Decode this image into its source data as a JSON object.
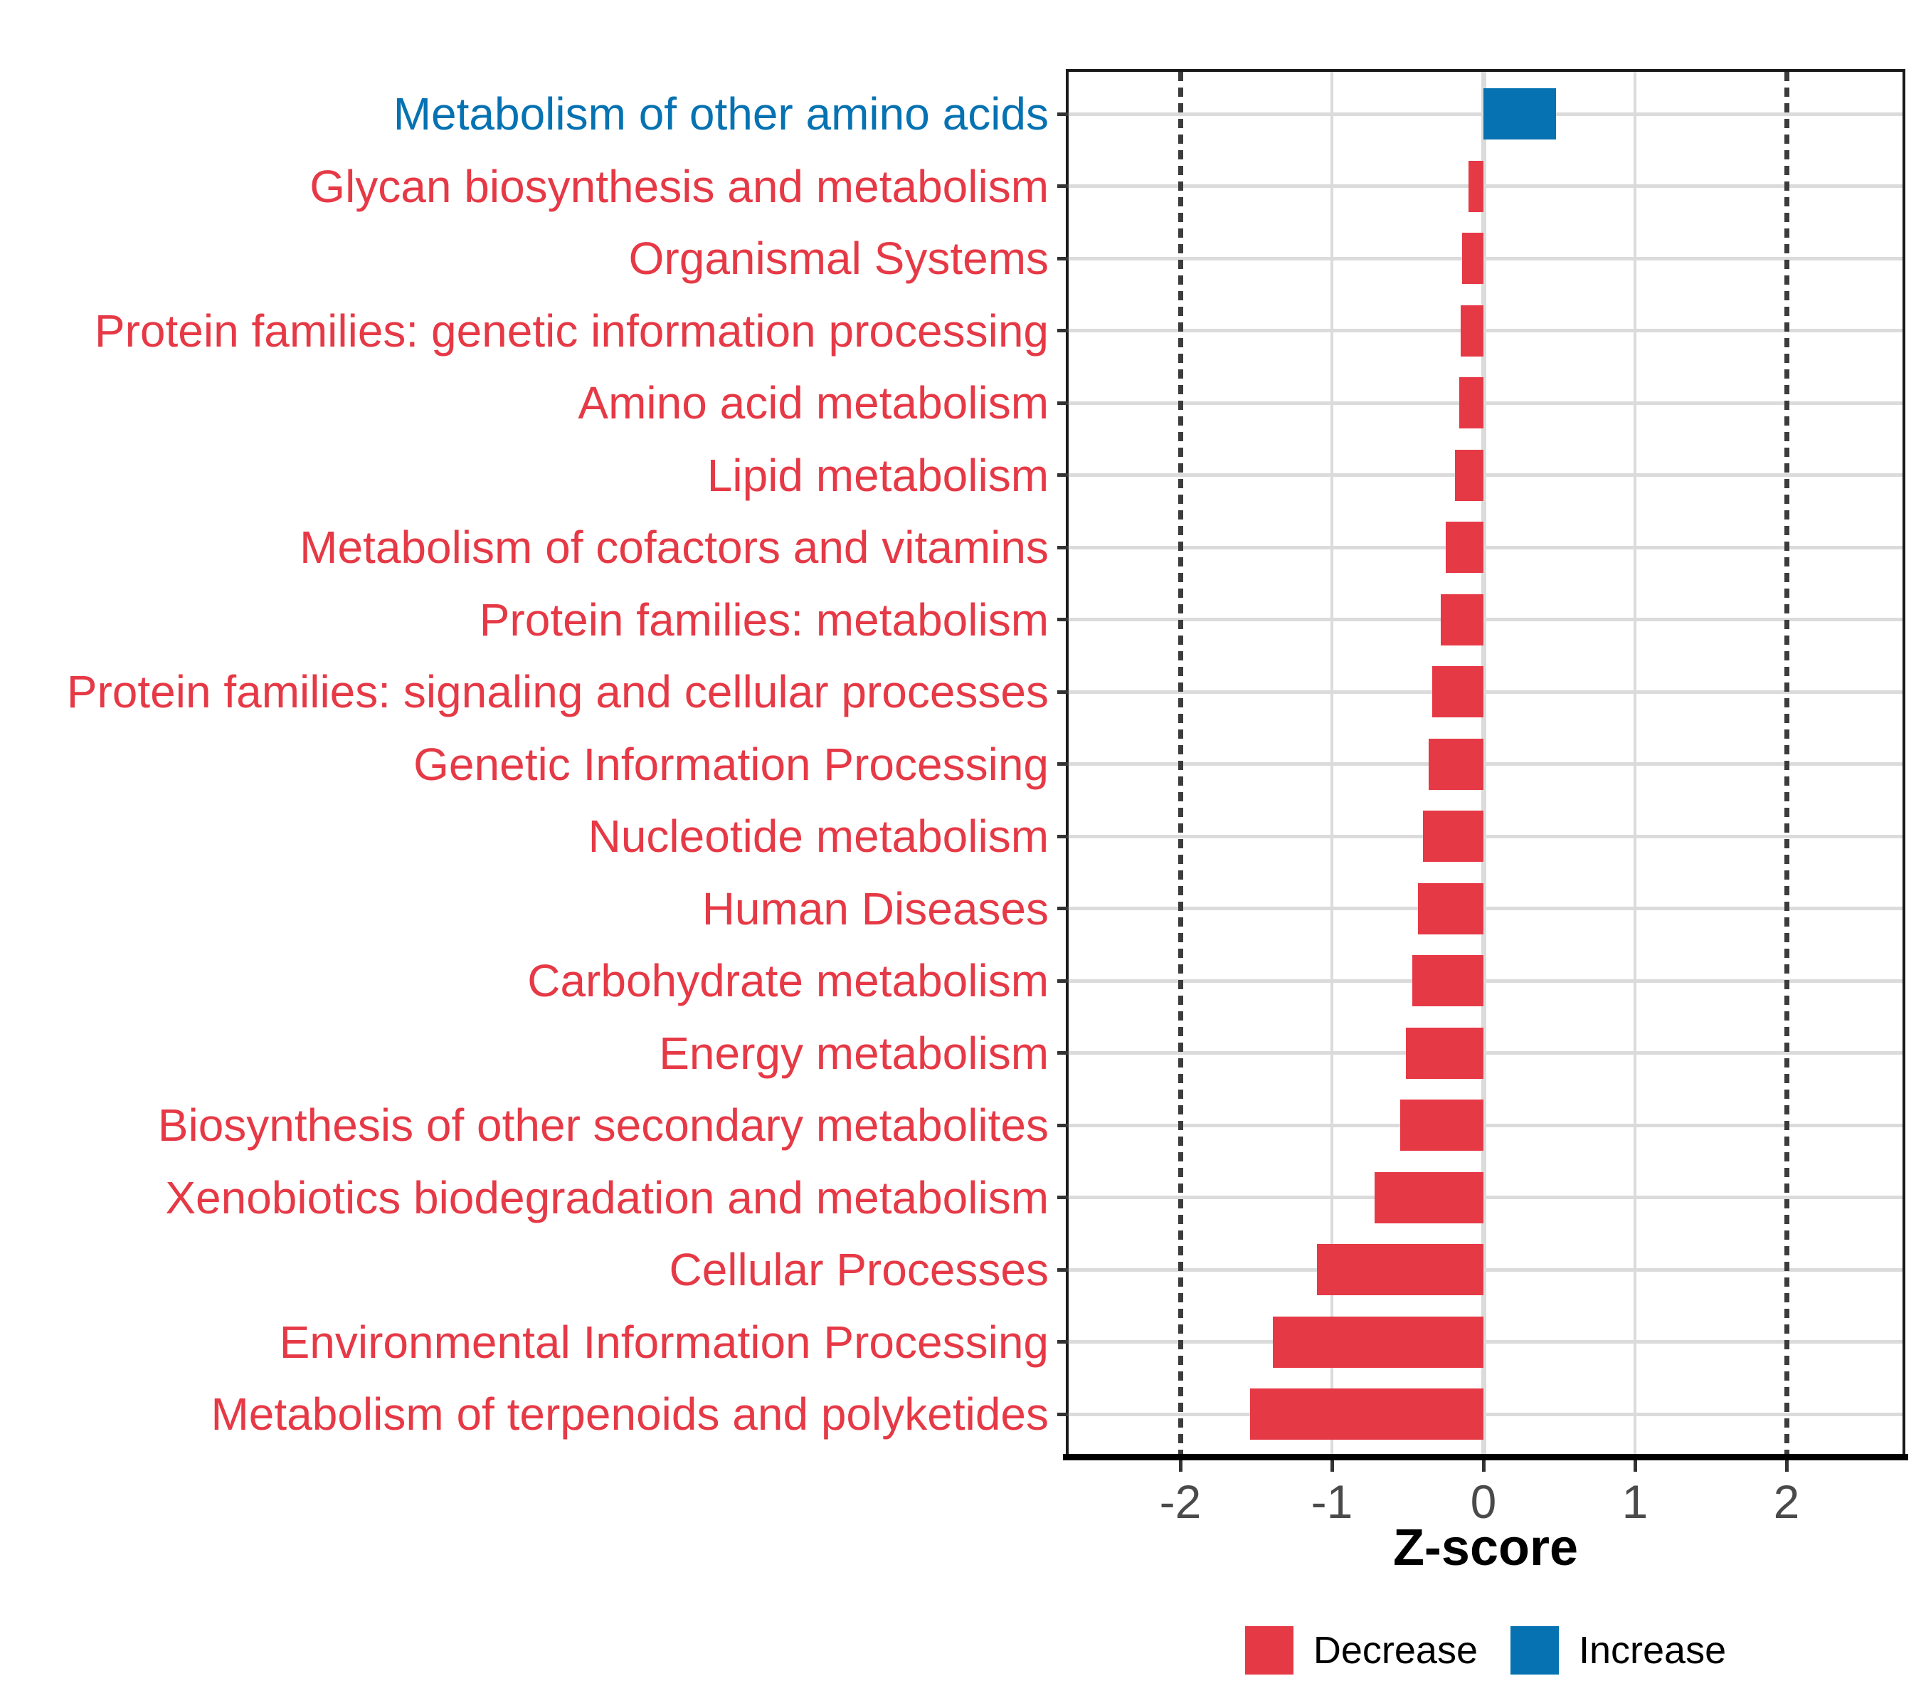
{
  "figure": {
    "xlabel": "Z-score"
  },
  "colors": {
    "decrease": "#E63946",
    "increase": "#0672B2",
    "tick_text": "#4A4A4A",
    "gridline": "#DBDBDB",
    "dotted_line": "#3C3C3C",
    "axis_line": "#000000"
  },
  "chart_data": {
    "type": "bar",
    "orientation": "horizontal",
    "title": "",
    "xlabel": "Z-score",
    "ylabel": "",
    "x_ticks": [
      -2,
      -1,
      0,
      1,
      2
    ],
    "xlim": [
      -2.74,
      2.77
    ],
    "grid": "major",
    "dotted_vlines": [
      -2,
      2
    ],
    "legend_position": "bottom",
    "legend_entries": [
      {
        "label": "Decrease",
        "color": "#E63946"
      },
      {
        "label": "Increase",
        "color": "#0672B2"
      }
    ],
    "series": [
      {
        "category": "Metabolism of other amino acids",
        "value": 0.48,
        "direction": "Increase"
      },
      {
        "category": "Glycan biosynthesis and metabolism",
        "value": -0.1,
        "direction": "Decrease"
      },
      {
        "category": "Organismal Systems",
        "value": -0.14,
        "direction": "Decrease"
      },
      {
        "category": "Protein families: genetic information processing",
        "value": -0.15,
        "direction": "Decrease"
      },
      {
        "category": "Amino acid metabolism",
        "value": -0.16,
        "direction": "Decrease"
      },
      {
        "category": "Lipid metabolism",
        "value": -0.19,
        "direction": "Decrease"
      },
      {
        "category": "Metabolism of cofactors and vitamins",
        "value": -0.25,
        "direction": "Decrease"
      },
      {
        "category": "Protein families: metabolism",
        "value": -0.28,
        "direction": "Decrease"
      },
      {
        "category": "Protein families: signaling and cellular processes",
        "value": -0.34,
        "direction": "Decrease"
      },
      {
        "category": "Genetic Information Processing",
        "value": -0.36,
        "direction": "Decrease"
      },
      {
        "category": "Nucleotide metabolism",
        "value": -0.4,
        "direction": "Decrease"
      },
      {
        "category": "Human Diseases",
        "value": -0.43,
        "direction": "Decrease"
      },
      {
        "category": "Carbohydrate metabolism",
        "value": -0.47,
        "direction": "Decrease"
      },
      {
        "category": "Energy metabolism",
        "value": -0.51,
        "direction": "Decrease"
      },
      {
        "category": "Biosynthesis of other secondary metabolites",
        "value": -0.55,
        "direction": "Decrease"
      },
      {
        "category": "Xenobiotics biodegradation and metabolism",
        "value": -0.72,
        "direction": "Decrease"
      },
      {
        "category": "Cellular Processes",
        "value": -1.1,
        "direction": "Decrease"
      },
      {
        "category": "Environmental Information Processing",
        "value": -1.39,
        "direction": "Decrease"
      },
      {
        "category": "Metabolism of terpenoids and polyketides",
        "value": -1.54,
        "direction": "Decrease"
      }
    ]
  }
}
